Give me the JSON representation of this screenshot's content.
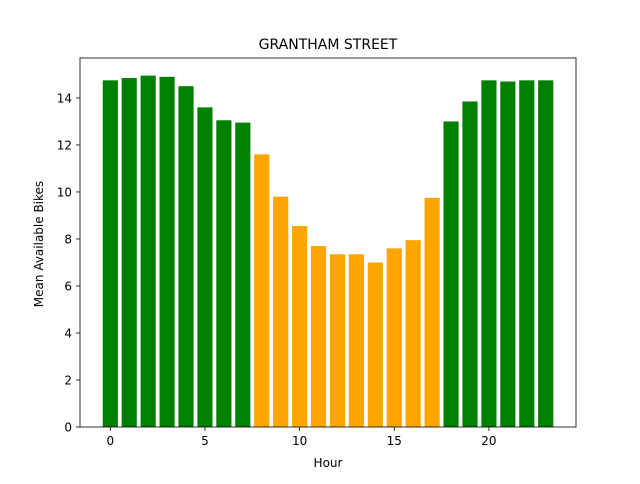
{
  "chart_data": {
    "type": "bar",
    "title": "GRANTHAM STREET",
    "xlabel": "Hour",
    "ylabel": "Mean Available Bikes",
    "x": [
      0,
      1,
      2,
      3,
      4,
      5,
      6,
      7,
      8,
      9,
      10,
      11,
      12,
      13,
      14,
      15,
      16,
      17,
      18,
      19,
      20,
      21,
      22,
      23
    ],
    "values": [
      14.75,
      14.85,
      14.95,
      14.9,
      14.5,
      13.6,
      13.05,
      12.95,
      11.6,
      9.8,
      8.55,
      7.7,
      7.35,
      7.35,
      7.0,
      7.6,
      7.95,
      9.75,
      13.0,
      13.85,
      14.75,
      14.7,
      14.75,
      14.75
    ],
    "colors": [
      "green",
      "green",
      "green",
      "green",
      "green",
      "green",
      "green",
      "green",
      "orange",
      "orange",
      "orange",
      "orange",
      "orange",
      "orange",
      "orange",
      "orange",
      "orange",
      "orange",
      "green",
      "green",
      "green",
      "green",
      "green",
      "green"
    ],
    "palette": {
      "green": "#008000",
      "orange": "#ffa500"
    },
    "xlim": [
      -1.6,
      24.6
    ],
    "ylim": [
      0,
      15.7
    ],
    "xticks": [
      0,
      5,
      10,
      15,
      20
    ],
    "yticks": [
      0,
      2,
      4,
      6,
      8,
      10,
      12,
      14
    ],
    "grid": false,
    "legend": "none"
  }
}
